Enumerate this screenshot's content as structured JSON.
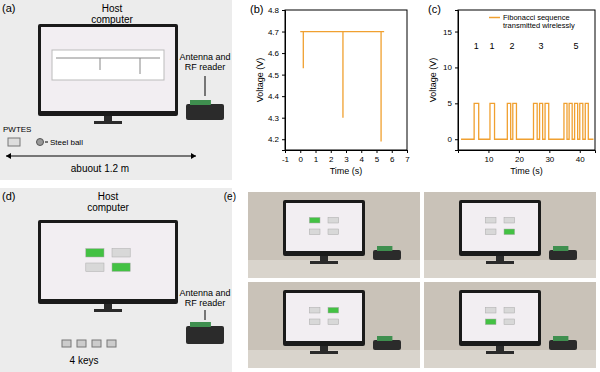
{
  "panels": {
    "a": {
      "label": "(a)",
      "host": "Host computer",
      "reader": "Antenna and RF reader",
      "device": "PWTES",
      "ball": "Steel ball",
      "distance": "abuout 1.2 m"
    },
    "d": {
      "label": "(d)",
      "host": "Host computer",
      "reader": "Antenna and RF reader",
      "keys": "4 keys",
      "lit": [
        1,
        0,
        0,
        1
      ]
    },
    "e": {
      "label": "(e)",
      "lit": [
        [
          1,
          0,
          0,
          0
        ],
        [
          0,
          0,
          0,
          1
        ],
        [
          0,
          1,
          0,
          0
        ],
        [
          0,
          0,
          1,
          0
        ]
      ]
    }
  },
  "chart_data": [
    {
      "type": "line",
      "title": "(b)",
      "x_label": "Time (s)",
      "y_label": "Voltage (V)",
      "x": [
        0,
        0.2,
        0.2,
        0.2,
        2.8,
        2.8,
        2.8,
        5.3,
        5.3,
        5.3,
        5.5
      ],
      "values": [
        4.7,
        4.7,
        4.53,
        4.7,
        4.7,
        4.3,
        4.7,
        4.7,
        4.19,
        4.7,
        4.7
      ],
      "color": "#f0a030",
      "xlim": [
        -1,
        7
      ],
      "xticks": [
        -1,
        0,
        1,
        2,
        3,
        4,
        5,
        6,
        7
      ],
      "ylim": [
        4.15,
        4.8
      ],
      "yticks": [
        4.2,
        4.3,
        4.4,
        4.5,
        4.6,
        4.7,
        4.8
      ]
    },
    {
      "type": "line",
      "title": "(c)",
      "x_label": "Time (s)",
      "y_label": "Voltage (V)",
      "x": [
        1,
        5.3,
        5.3,
        6.8,
        6.8,
        10.5,
        10.5,
        12.0,
        12.0,
        16.2,
        16.2,
        17.3,
        17.3,
        18.0,
        18.0,
        19.2,
        19.2,
        24.8,
        24.8,
        26.0,
        26.0,
        26.8,
        26.8,
        27.8,
        27.8,
        28.6,
        28.6,
        29.8,
        29.8,
        34.8,
        34.8,
        35.8,
        35.8,
        36.5,
        36.5,
        37.5,
        37.5,
        38.3,
        38.3,
        39.3,
        39.3,
        40.0,
        40.0,
        41.0,
        41.0,
        41.8,
        41.8,
        42.8,
        42.8,
        44.5
      ],
      "series": [
        {
          "name": "Fibonacci sequence transmitted wirelessly",
          "color": "#f0a030",
          "values": [
            0,
            0,
            5,
            5,
            0,
            0,
            5,
            5,
            0,
            0,
            5,
            5,
            0,
            0,
            5,
            5,
            0,
            0,
            5,
            5,
            0,
            0,
            5,
            5,
            0,
            0,
            5,
            5,
            0,
            0,
            5,
            5,
            0,
            0,
            5,
            5,
            0,
            0,
            5,
            5,
            0,
            0,
            5,
            5,
            0,
            0,
            5,
            5,
            0,
            0
          ]
        }
      ],
      "legend": "upper right",
      "annotations": [
        {
          "text": "1",
          "x": 6,
          "y": 12.5
        },
        {
          "text": "1",
          "x": 11.2,
          "y": 12.5
        },
        {
          "text": "2",
          "x": 17.7,
          "y": 12.5
        },
        {
          "text": "3",
          "x": 27.3,
          "y": 12.5
        },
        {
          "text": "5",
          "x": 38.8,
          "y": 12.5
        }
      ],
      "xlim": [
        0,
        45
      ],
      "xticks": [
        10,
        20,
        30,
        40
      ],
      "ylim": [
        -1.5,
        18
      ],
      "yticks": [
        0,
        5,
        10,
        15
      ]
    }
  ]
}
